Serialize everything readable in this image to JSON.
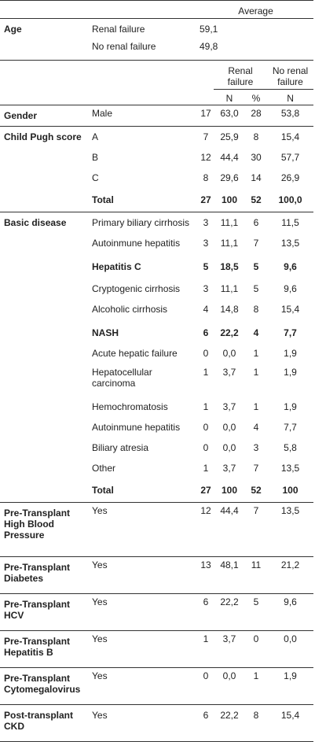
{
  "header": {
    "average": "Average"
  },
  "age": {
    "label": "Age",
    "rows": [
      {
        "sub": "Renal failure",
        "value": "59,1"
      },
      {
        "sub": "No renal failure",
        "value": "49,8"
      }
    ]
  },
  "columns": {
    "renal_failure": "Renal failure",
    "no_renal_failure": "No renal failure",
    "n": "N",
    "pct": "%"
  },
  "gender": {
    "label": "Gender",
    "sub": "Male",
    "rf_n": "17",
    "rf_p": "63,0",
    "nrf_n": "28",
    "nrf_p": "53,8"
  },
  "child_pugh": {
    "label": "Child Pugh score",
    "rows": [
      {
        "sub": "A",
        "rf_n": "7",
        "rf_p": "25,9",
        "nrf_n": "8",
        "nrf_p": "15,4"
      },
      {
        "sub": "B",
        "rf_n": "12",
        "rf_p": "44,4",
        "nrf_n": "30",
        "nrf_p": "57,7"
      },
      {
        "sub": "C",
        "rf_n": "8",
        "rf_p": "29,6",
        "nrf_n": "14",
        "nrf_p": "26,9"
      }
    ],
    "total": {
      "sub": "Total",
      "rf_n": "27",
      "rf_p": "100",
      "nrf_n": "52",
      "nrf_p": "100,0"
    }
  },
  "basic_disease": {
    "label": "Basic disease",
    "rows": [
      {
        "sub": "Primary biliary cirrhosis",
        "rf_n": "3",
        "rf_p": "11,1",
        "nrf_n": "6",
        "nrf_p": "11,5"
      },
      {
        "sub": "Autoinmune hepatitis",
        "rf_n": "3",
        "rf_p": "11,1",
        "nrf_n": "7",
        "nrf_p": "13,5"
      },
      {
        "sub": "Hepatitis C",
        "rf_n": "5",
        "rf_p": "18,5",
        "nrf_n": "5",
        "nrf_p": "9,6"
      },
      {
        "sub": "Cryptogenic cirrhosis",
        "rf_n": "3",
        "rf_p": "11,1",
        "nrf_n": "5",
        "nrf_p": "9,6"
      },
      {
        "sub": "Alcoholic cirrhosis",
        "rf_n": "4",
        "rf_p": "14,8",
        "nrf_n": "8",
        "nrf_p": "15,4"
      },
      {
        "sub": "NASH",
        "rf_n": "6",
        "rf_p": "22,2",
        "nrf_n": "4",
        "nrf_p": "7,7"
      },
      {
        "sub": "Acute hepatic failure",
        "rf_n": "0",
        "rf_p": "0,0",
        "nrf_n": "1",
        "nrf_p": "1,9"
      },
      {
        "sub": "Hepatocellular carcinoma",
        "rf_n": "1",
        "rf_p": "3,7",
        "nrf_n": "1",
        "nrf_p": "1,9"
      },
      {
        "sub": "Hemochromatosis",
        "rf_n": "1",
        "rf_p": "3,7",
        "nrf_n": "1",
        "nrf_p": "1,9"
      },
      {
        "sub": "Autoinmune hepatitis",
        "rf_n": "0",
        "rf_p": "0,0",
        "nrf_n": "4",
        "nrf_p": "7,7"
      },
      {
        "sub": "Biliary atresia",
        "rf_n": "0",
        "rf_p": "0,0",
        "nrf_n": "3",
        "nrf_p": "5,8"
      },
      {
        "sub": "Other",
        "rf_n": "1",
        "rf_p": "3,7",
        "nrf_n": "7",
        "nrf_p": "13,5"
      }
    ],
    "total": {
      "sub": "Total",
      "rf_n": "27",
      "rf_p": "100",
      "nrf_n": "52",
      "nrf_p": "100"
    }
  },
  "pretransplant": [
    {
      "label": "Pre-Transplant High Blood Pressure",
      "sub": "Yes",
      "rf_n": "12",
      "rf_p": "44,4",
      "nrf_n": "7",
      "nrf_p": "13,5"
    },
    {
      "label": "Pre-Transplant Diabetes",
      "sub": "Yes",
      "rf_n": "13",
      "rf_p": "48,1",
      "nrf_n": "11",
      "nrf_p": "21,2"
    },
    {
      "label": "Pre-Transplant HCV",
      "sub": "Yes",
      "rf_n": "6",
      "rf_p": "22,2",
      "nrf_n": "5",
      "nrf_p": "9,6"
    },
    {
      "label": "Pre-Transplant Hepatitis B",
      "sub": "Yes",
      "rf_n": "1",
      "rf_p": "3,7",
      "nrf_n": "0",
      "nrf_p": "0,0"
    },
    {
      "label": "Pre-Transplant Cytomegalovirus",
      "sub": "Yes",
      "rf_n": "0",
      "rf_p": "0,0",
      "nrf_n": "1",
      "nrf_p": "1,9"
    },
    {
      "label": "Post-transplant CKD",
      "sub": "Yes",
      "rf_n": "6",
      "rf_p": "22,2",
      "nrf_n": "8",
      "nrf_p": "15,4"
    }
  ]
}
